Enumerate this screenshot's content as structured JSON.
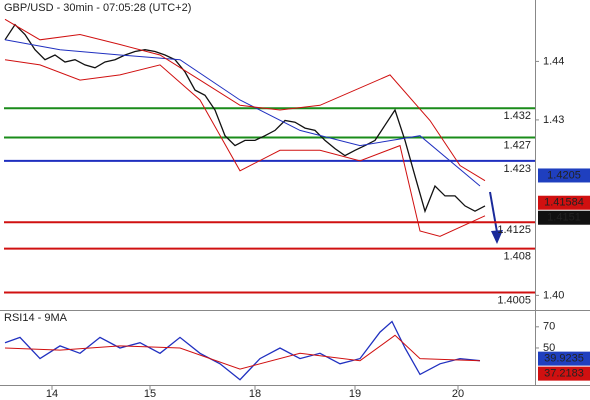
{
  "chart_data": [
    {
      "type": "line",
      "title": "GBP/USD - 30min - 07:05:28 (UTC+2)",
      "xlim": [
        -0.5,
        53
      ],
      "ylim": [
        1.3975,
        1.4505
      ],
      "yticks": [
        1.44,
        1.43,
        {
          "value": 1.4,
          "label": "1.40"
        }
      ],
      "series": [
        {
          "color": "#111111",
          "x": [
            0,
            1,
            2,
            3,
            4,
            5,
            6,
            7,
            8,
            9,
            10,
            11,
            12,
            13,
            14,
            15,
            16,
            17,
            18,
            19,
            20,
            21,
            22,
            23,
            24,
            25,
            26,
            27,
            28,
            29,
            30,
            31,
            32,
            33,
            34,
            35,
            36,
            37,
            38,
            39,
            40,
            41,
            42,
            43,
            44,
            45,
            46,
            47,
            48
          ],
          "values": [
            1.4437,
            1.4463,
            1.4446,
            1.442,
            1.4403,
            1.4411,
            1.4399,
            1.4403,
            1.4394,
            1.4389,
            1.4399,
            1.4403,
            1.4411,
            1.4417,
            1.442,
            1.4417,
            1.4411,
            1.4403,
            1.4382,
            1.4351,
            1.4342,
            1.4317,
            1.4273,
            1.4256,
            1.4265,
            1.4265,
            1.4273,
            1.4282,
            1.4299,
            1.4296,
            1.4286,
            1.4282,
            1.4265,
            1.4251,
            1.4239,
            1.4248,
            1.4256,
            1.4265,
            1.4291,
            1.4317,
            1.4265,
            1.4204,
            1.4144,
            1.4187,
            1.417,
            1.417,
            1.4153,
            1.4144,
            1.4153
          ]
        },
        {
          "color": "#2030c0",
          "x": [
            0,
            5.5,
            11.5,
            17.5,
            23.5,
            29.5,
            35.5,
            41.5,
            47.5
          ],
          "values": [
            1.4437,
            1.442,
            1.4411,
            1.4403,
            1.4334,
            1.4282,
            1.4256,
            1.4273,
            1.4187
          ]
        },
        {
          "color": "#d01010",
          "x": [
            0,
            3.5,
            7.5,
            11.5,
            15.5,
            19.5,
            23.5,
            27.5,
            31.5,
            38.5,
            42.5,
            45.5,
            48
          ],
          "values": [
            1.4472,
            1.4437,
            1.4446,
            1.4429,
            1.4411,
            1.4368,
            1.4325,
            1.4317,
            1.4325,
            1.4377,
            1.4299,
            1.4222,
            1.4196
          ]
        },
        {
          "color": "#d01010",
          "x": [
            0,
            3.5,
            7.5,
            11.5,
            15.5,
            19.5,
            23.5,
            27.5,
            31.5,
            35.5,
            39.5,
            41.5,
            43.5,
            48
          ],
          "values": [
            1.4403,
            1.4394,
            1.4368,
            1.4377,
            1.4394,
            1.4334,
            1.4213,
            1.4248,
            1.4248,
            1.423,
            1.4256,
            1.411,
            1.4101,
            1.4136
          ]
        }
      ],
      "levels": [
        {
          "value": 1.432,
          "color": "#1a8c1a"
        },
        {
          "value": 1.427,
          "color": "#1a8c1a"
        },
        {
          "value": 1.423,
          "color": "#1f2fbf"
        },
        {
          "value": 1.4125,
          "color": "#d01010"
        },
        {
          "value": 1.408,
          "color": "#d01010"
        },
        {
          "value": 1.4005,
          "color": "#d01010"
        }
      ],
      "price_tags": [
        {
          "value": 1.4205,
          "color": "#1f3fbf"
        },
        {
          "value": 1.41584,
          "color": "#d01010"
        },
        {
          "value": 1.4151,
          "color": "#111111"
        }
      ]
    },
    {
      "type": "line",
      "title": "RSI14 - 9MA",
      "xlim": [
        -0.5,
        53
      ],
      "ylim": [
        15,
        84
      ],
      "yticks": [
        70,
        50
      ],
      "xticks": [
        {
          "value": 4.7,
          "label": "14"
        },
        {
          "value": 14.5,
          "label": "15"
        },
        {
          "value": 25,
          "label": "18"
        },
        {
          "value": 35,
          "label": "19"
        },
        {
          "value": 45.3,
          "label": "20"
        }
      ],
      "series": [
        {
          "color": "#2030c0",
          "x": [
            0,
            1.5,
            3.5,
            5.5,
            7.5,
            9.5,
            11.5,
            13.5,
            15.5,
            17.5,
            19.5,
            21.5,
            23.5,
            25.5,
            27.5,
            29.5,
            31.5,
            33.5,
            35.5,
            37.5,
            38.7,
            40,
            41.5,
            43.5,
            45.5,
            47.5
          ],
          "values": [
            55,
            60,
            40,
            52,
            45,
            60,
            50,
            55,
            45,
            60,
            45,
            35,
            20,
            40,
            50,
            40,
            45,
            35,
            40,
            65,
            75,
            50,
            25,
            35,
            40,
            38
          ]
        },
        {
          "color": "#d01010",
          "x": [
            0,
            5.5,
            11.5,
            17.5,
            23.5,
            29.5,
            35.5,
            39,
            41.5,
            47.5
          ],
          "values": [
            50,
            48,
            52,
            50,
            30,
            45,
            38,
            62,
            40,
            38
          ]
        }
      ],
      "price_tags": [
        {
          "value": 39.9235,
          "color": "#1f3fbf"
        },
        {
          "value": 37.2183,
          "color": "#d01010"
        }
      ]
    }
  ]
}
